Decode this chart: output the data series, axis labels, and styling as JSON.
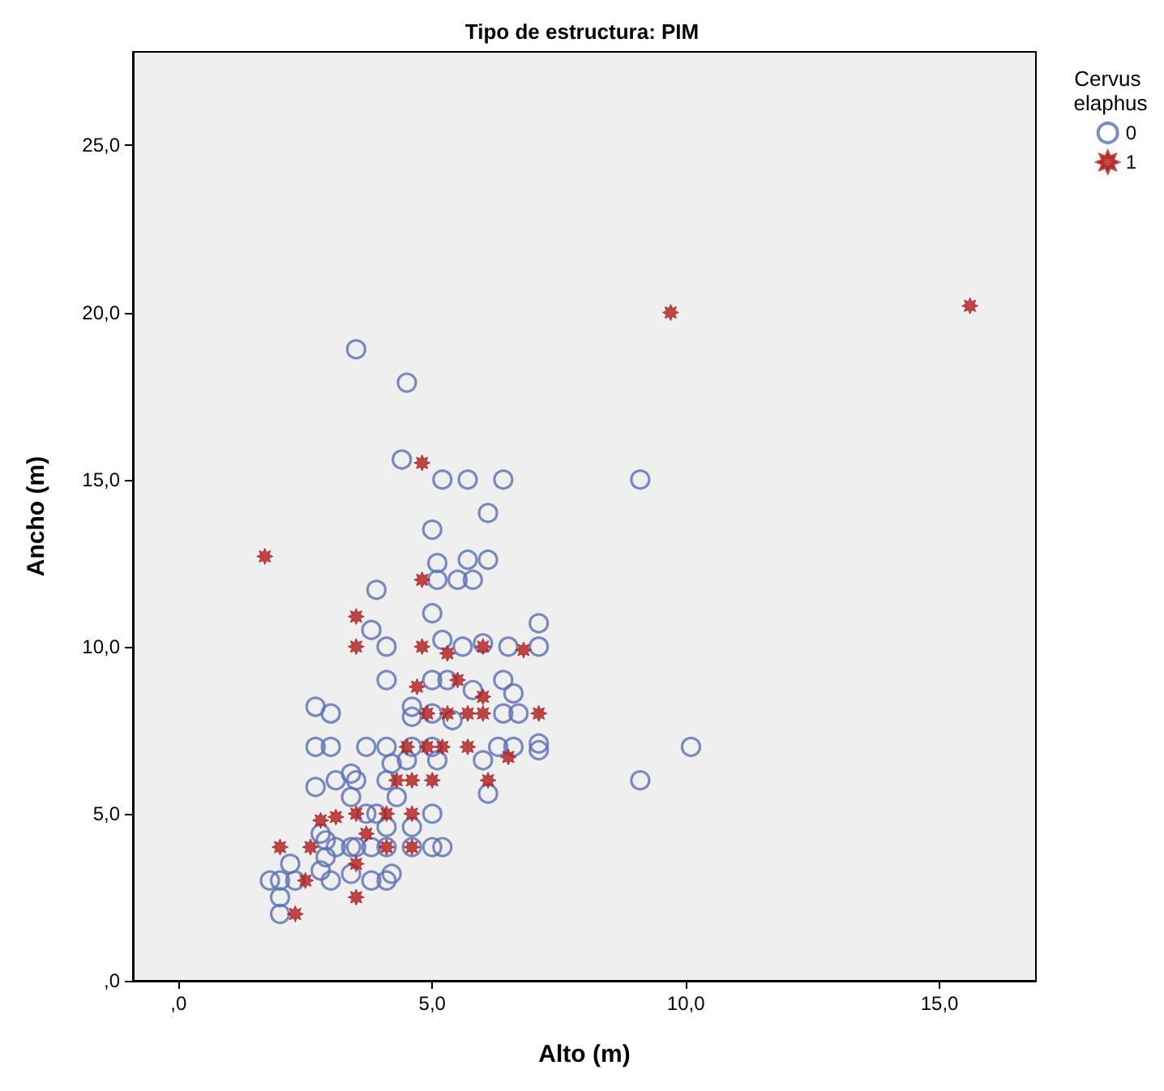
{
  "chart_data": {
    "type": "scatter",
    "title": "Tipo de estructura: PIM",
    "xlabel": "Alto (m)",
    "ylabel": "Ancho (m)",
    "legend_title": "Cervus elaphus",
    "xlim": [
      -0.9,
      16.9
    ],
    "ylim": [
      0,
      27.8
    ],
    "xticks": [
      {
        "value": 0,
        "label": ",0"
      },
      {
        "value": 5,
        "label": "5,0"
      },
      {
        "value": 10,
        "label": "10,0"
      },
      {
        "value": 15,
        "label": "15,0"
      }
    ],
    "yticks": [
      {
        "value": 0,
        "label": ",0"
      },
      {
        "value": 5,
        "label": "5,0"
      },
      {
        "value": 10,
        "label": "10,0"
      },
      {
        "value": 15,
        "label": "15,0"
      },
      {
        "value": 20,
        "label": "20,0"
      },
      {
        "value": 25,
        "label": "25,0"
      }
    ],
    "grid": false,
    "legend": "right",
    "series": [
      {
        "name": "0",
        "color": "#5a6fb5",
        "marker": "circle",
        "x": [
          3.5,
          4.5,
          4.4,
          5.2,
          5.7,
          6.4,
          9.1,
          6.1,
          5.0,
          5.1,
          5.7,
          6.1,
          5.1,
          5.5,
          5.8,
          3.9,
          5.0,
          7.1,
          3.8,
          4.1,
          5.2,
          5.6,
          6.0,
          6.5,
          7.1,
          4.1,
          5.0,
          5.3,
          5.8,
          6.4,
          6.6,
          2.7,
          3.0,
          4.6,
          4.6,
          5.0,
          5.4,
          6.4,
          6.7,
          2.7,
          3.0,
          3.7,
          4.1,
          4.6,
          5.0,
          5.1,
          4.5,
          4.2,
          6.0,
          6.3,
          6.6,
          7.1,
          7.1,
          6.1,
          4.1,
          2.7,
          3.1,
          3.4,
          3.5,
          3.4,
          4.3,
          3.7,
          3.9,
          4.1,
          5.0,
          4.6,
          2.8,
          2.9,
          3.1,
          3.4,
          3.5,
          3.8,
          4.1,
          4.6,
          5.0,
          5.2,
          2.9,
          2.2,
          1.8,
          2.0,
          2.3,
          3.0,
          3.4,
          3.8,
          4.1,
          4.2,
          2.8,
          2.0,
          2.0,
          10.1,
          9.1
        ],
        "values": [
          18.9,
          17.9,
          15.6,
          15.0,
          15.0,
          15.0,
          15.0,
          14.0,
          13.5,
          12.5,
          12.6,
          12.6,
          12.0,
          12.0,
          12.0,
          11.7,
          11.0,
          10.7,
          10.5,
          10.0,
          10.2,
          10.0,
          10.1,
          10.0,
          10.0,
          9.0,
          9.0,
          9.0,
          8.7,
          9.0,
          8.6,
          8.2,
          8.0,
          8.2,
          7.9,
          8.0,
          7.8,
          8.0,
          8.0,
          7.0,
          7.0,
          7.0,
          7.0,
          7.0,
          7.0,
          6.6,
          6.6,
          6.5,
          6.6,
          7.0,
          7.0,
          7.1,
          6.9,
          5.6,
          6.0,
          5.8,
          6.0,
          6.2,
          6.0,
          5.5,
          5.5,
          5.0,
          5.0,
          4.6,
          5.0,
          4.6,
          4.4,
          4.2,
          4.0,
          4.0,
          4.0,
          4.0,
          4.0,
          4.0,
          4.0,
          4.0,
          3.7,
          3.5,
          3.0,
          3.0,
          3.0,
          3.0,
          3.2,
          3.0,
          3.0,
          3.2,
          3.3,
          2.5,
          2.0,
          7.0,
          6.0
        ]
      },
      {
        "name": "1",
        "color": "#b01a1a",
        "marker": "star",
        "x": [
          1.7,
          9.7,
          15.6,
          4.8,
          4.8,
          4.8,
          5.3,
          6.0,
          6.8,
          4.7,
          5.5,
          6.0,
          4.9,
          5.3,
          5.7,
          6.0,
          7.1,
          4.5,
          4.9,
          5.2,
          5.7,
          6.5,
          3.5,
          3.5,
          4.3,
          4.6,
          5.0,
          6.1,
          4.1,
          4.6,
          3.5,
          2.8,
          3.1,
          3.7,
          2.0,
          2.6,
          4.1,
          4.6,
          3.5,
          2.5,
          3.5,
          2.3
        ],
        "values": [
          12.7,
          20.0,
          20.2,
          15.5,
          12.0,
          10.0,
          9.8,
          10.0,
          9.9,
          8.8,
          9.0,
          8.5,
          8.0,
          8.0,
          8.0,
          8.0,
          8.0,
          7.0,
          7.0,
          7.0,
          7.0,
          6.7,
          10.9,
          10.0,
          6.0,
          6.0,
          6.0,
          6.0,
          5.0,
          5.0,
          5.0,
          4.8,
          4.9,
          4.4,
          4.0,
          4.0,
          4.0,
          4.0,
          3.5,
          3.0,
          2.5,
          2.0
        ]
      }
    ]
  }
}
